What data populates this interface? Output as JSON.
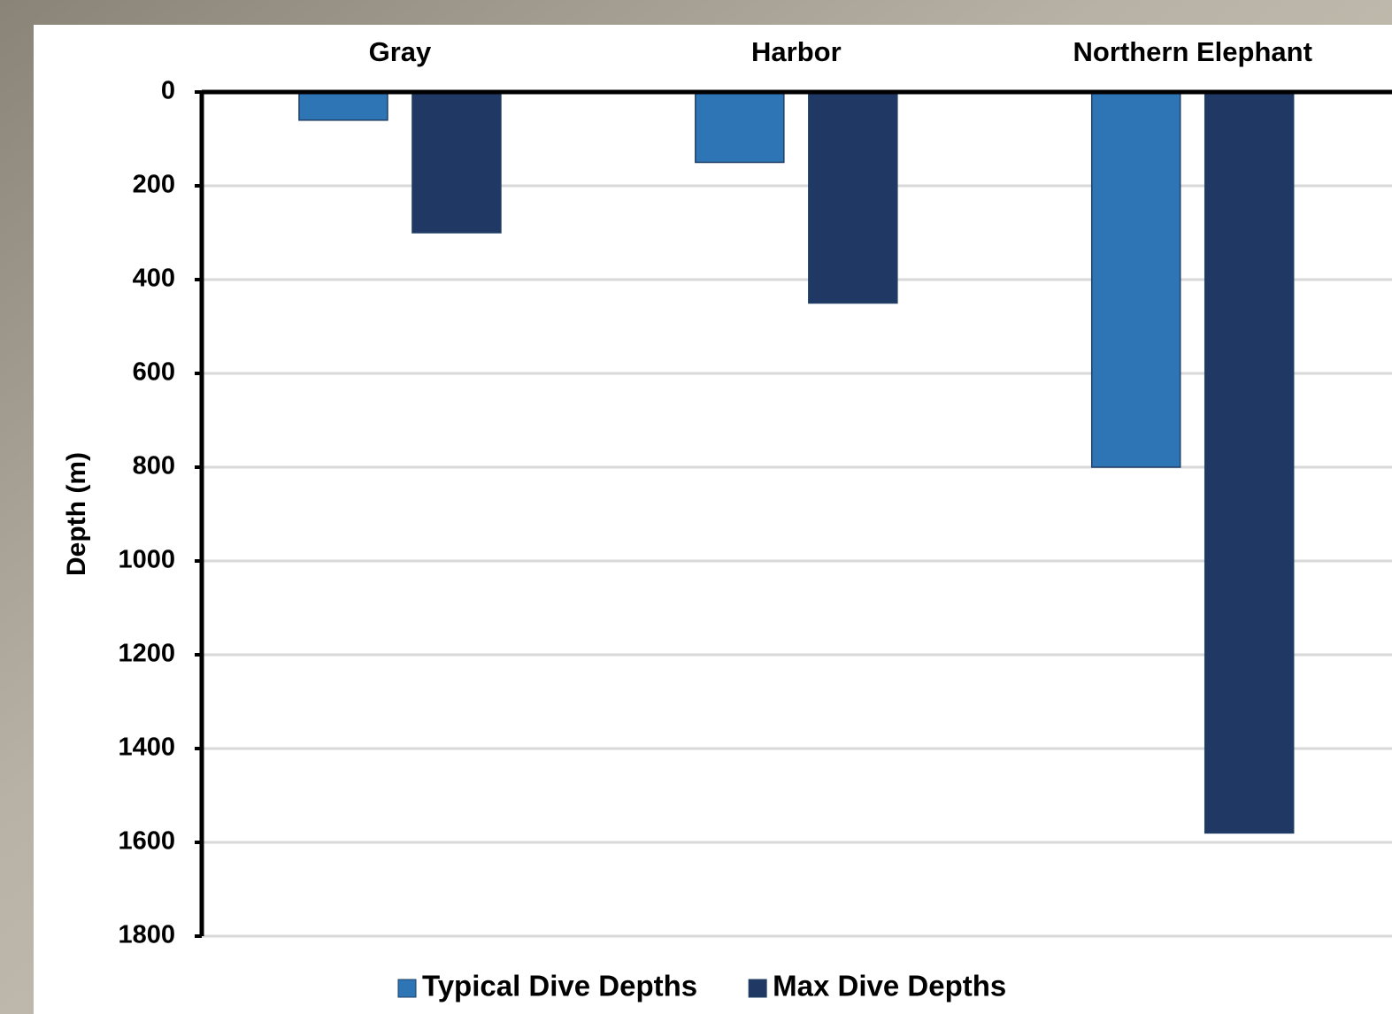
{
  "chart_data": {
    "type": "bar",
    "categories": [
      "Gray",
      "Harbor",
      "Northern Elephant"
    ],
    "y_label": "Depth (m)",
    "series": [
      {
        "name": "Typical Dive Depths",
        "color": "#2e75b6",
        "values": [
          60,
          150,
          800
        ]
      },
      {
        "name": "Max Dive Depths",
        "color": "#203864",
        "values": [
          300,
          450,
          1580
        ]
      }
    ],
    "ylim": [
      0,
      1800
    ],
    "yticks": [
      0,
      200,
      400,
      600,
      800,
      1000,
      1200,
      1400,
      1600,
      1800
    ],
    "y_inverted": true,
    "grid": true,
    "legend": "bottom"
  }
}
